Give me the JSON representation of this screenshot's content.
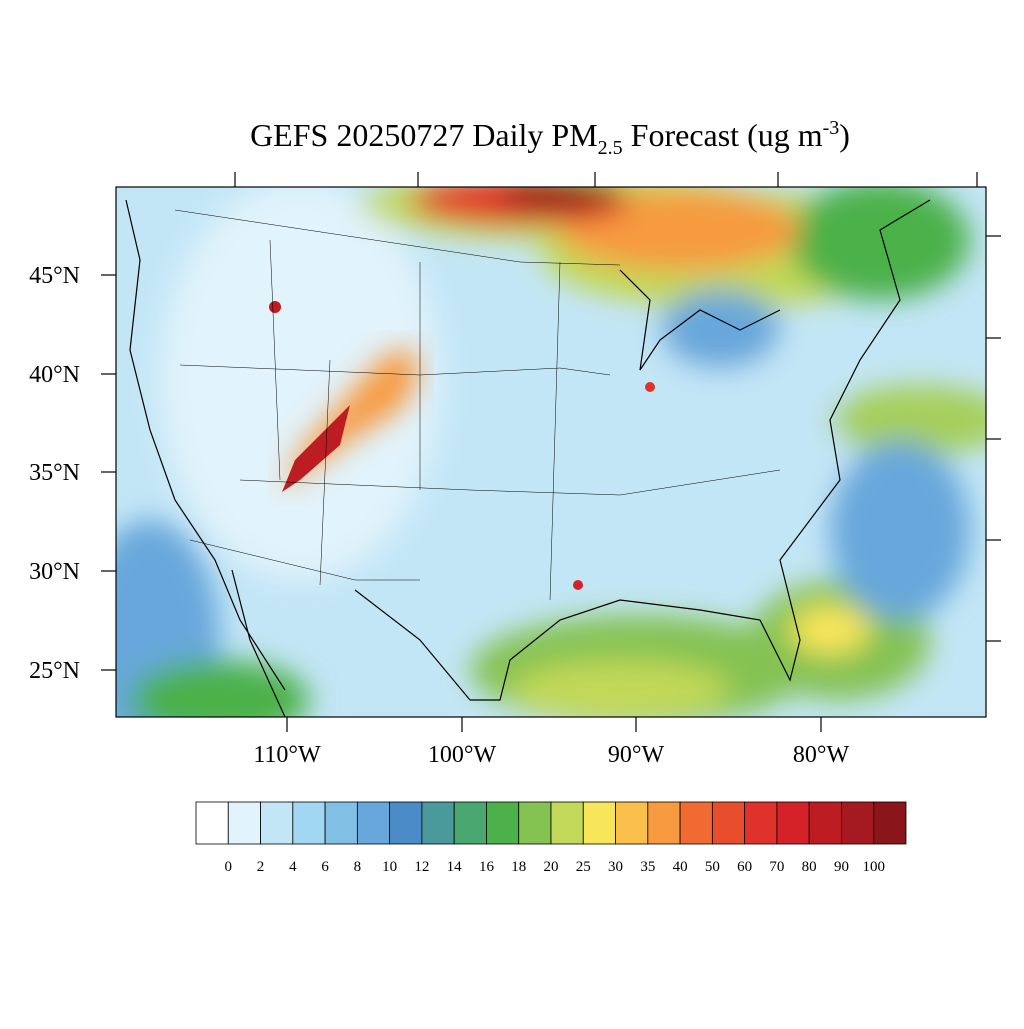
{
  "title": {
    "lead": "GEFS 20250727 Daily PM",
    "subscript": "2.5",
    "middle": " Forecast (ug m",
    "superscript": "-3",
    "tail": ")"
  },
  "map": {
    "lat_labels": [
      "45°N",
      "40°N",
      "35°N",
      "30°N",
      "25°N"
    ],
    "lon_labels": [
      "110°W",
      "100°W",
      "90°W",
      "80°W"
    ]
  },
  "colorbar": {
    "levels": [
      0,
      2,
      4,
      6,
      8,
      10,
      12,
      14,
      16,
      18,
      20,
      25,
      30,
      35,
      40,
      50,
      60,
      70,
      80,
      90,
      100
    ],
    "colors": [
      "#ffffff",
      "#e1f3fb",
      "#c3e6f6",
      "#a2d7f2",
      "#82bfe5",
      "#68a7db",
      "#4b8cc8",
      "#4a9a9c",
      "#48a870",
      "#4cb14a",
      "#84c252",
      "#c2d858",
      "#f7e65a",
      "#f8c04a",
      "#f79a40",
      "#f06a32",
      "#e84e2c",
      "#e0322a",
      "#d42228",
      "#bc1c22",
      "#a41a20",
      "#8a1619"
    ]
  }
}
